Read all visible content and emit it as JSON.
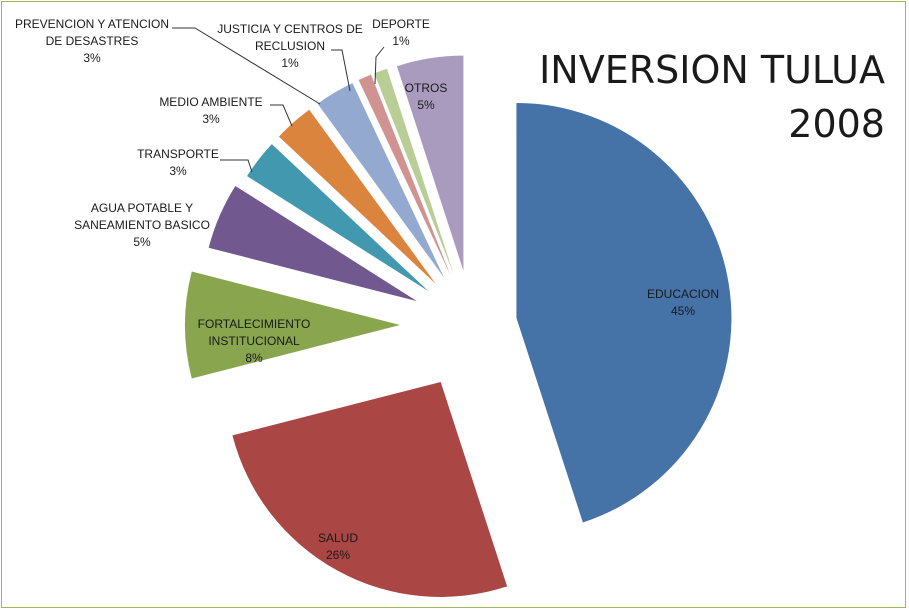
{
  "chart_data": {
    "type": "pie",
    "title": [
      "INVERSION TULUA",
      "2008"
    ],
    "slices": [
      {
        "name": "EDUCACION",
        "label_lines": [
          "EDUCACION"
        ],
        "value": 45,
        "value_label": "45%",
        "color": "#4572a7"
      },
      {
        "name": "SALUD",
        "label_lines": [
          "SALUD"
        ],
        "value": 26,
        "value_label": "26%",
        "color": "#aa4643"
      },
      {
        "name": "FORTALECIMIENTO INSTITUCIONAL",
        "label_lines": [
          "FORTALECIMIENTO",
          "INSTITUCIONAL"
        ],
        "value": 8,
        "value_label": "8%",
        "color": "#89a54e"
      },
      {
        "name": "AGUA POTABLE Y SANEAMIENTO BASICO",
        "label_lines": [
          "AGUA POTABLE Y",
          "SANEAMIENTO BASICO"
        ],
        "value": 5,
        "value_label": "5%",
        "color": "#71588f"
      },
      {
        "name": "TRANSPORTE",
        "label_lines": [
          "TRANSPORTE"
        ],
        "value": 3,
        "value_label": "3%",
        "color": "#4198af"
      },
      {
        "name": "MEDIO AMBIENTE",
        "label_lines": [
          "MEDIO AMBIENTE"
        ],
        "value": 3,
        "value_label": "3%",
        "color": "#db843d"
      },
      {
        "name": "PREVENCION Y ATENCION DE DESASTRES",
        "label_lines": [
          "PREVENCION Y ATENCION",
          "DE DESASTRES"
        ],
        "value": 3,
        "value_label": "3%",
        "color": "#93a9cf"
      },
      {
        "name": "JUSTICIA Y CENTROS DE RECLUSION",
        "label_lines": [
          "JUSTICIA Y CENTROS DE",
          "RECLUSION"
        ],
        "value": 1,
        "value_label": "1%",
        "color": "#d19392"
      },
      {
        "name": "DEPORTE",
        "label_lines": [
          "DEPORTE"
        ],
        "value": 1,
        "value_label": "1%",
        "color": "#b9cd96"
      },
      {
        "name": "OTROS",
        "label_lines": [
          "OTROS"
        ],
        "value": 5,
        "value_label": "5%",
        "color": "#a99bbd"
      }
    ],
    "legend": "none",
    "exploded": true
  }
}
